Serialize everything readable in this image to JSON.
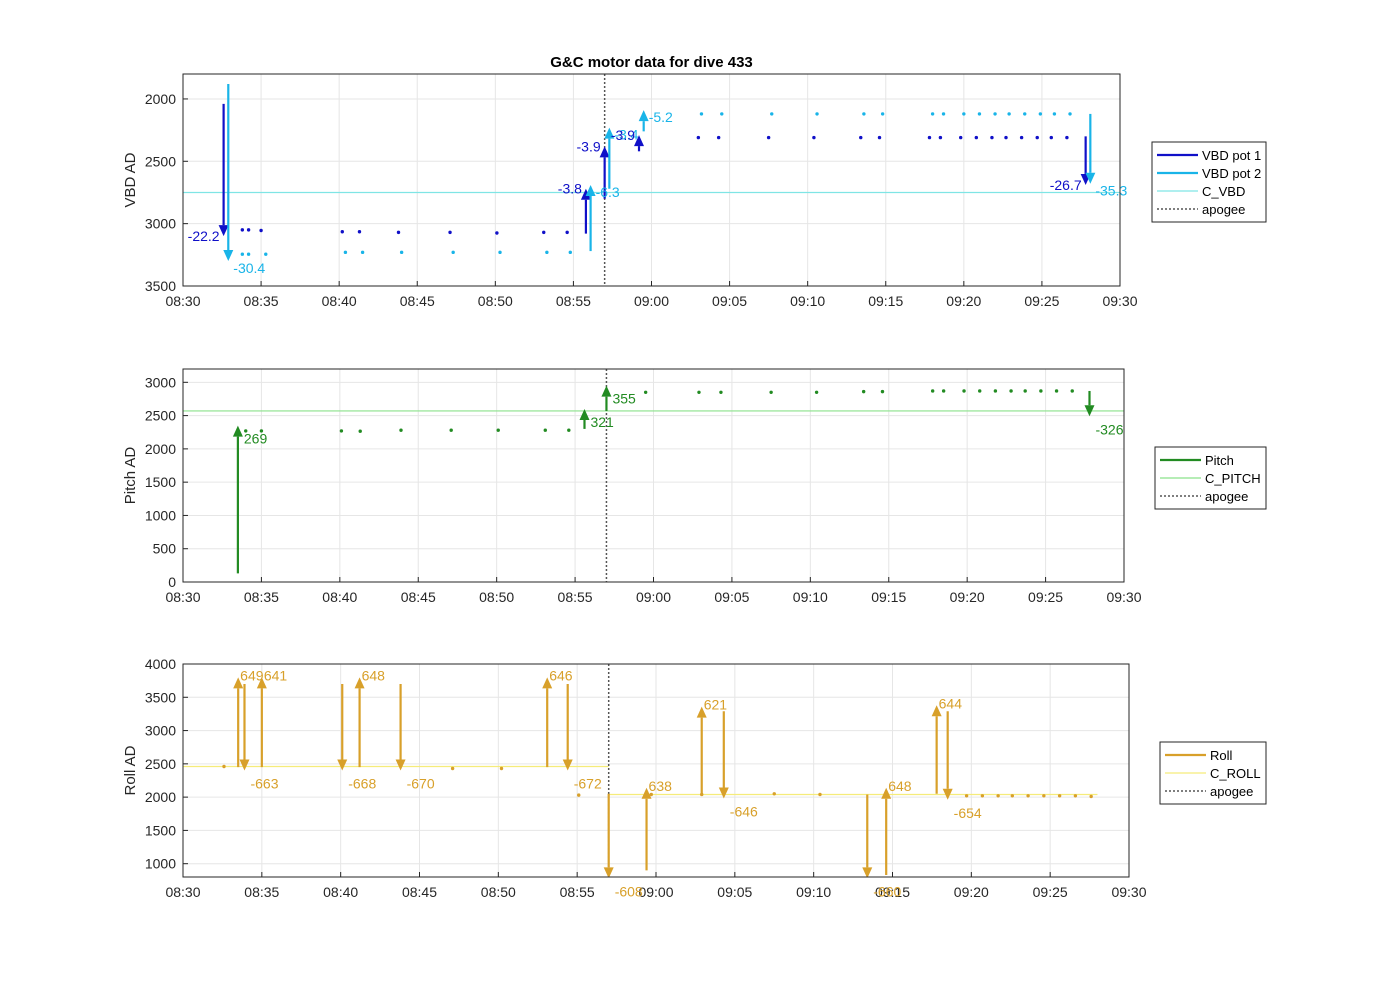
{
  "chart_data": [
    {
      "type": "line",
      "title": "G&C motor data for dive 433",
      "ylabel": "VBD AD",
      "ylim": [
        1800,
        3500
      ],
      "y_reversed": true,
      "yticks": [
        "2000",
        "2500",
        "3000",
        "3500"
      ],
      "yticks_values": [
        2000,
        2500,
        3000,
        3500
      ],
      "xlim": [
        "08:30",
        "09:30"
      ],
      "xticks": [
        "08:30",
        "08:35",
        "08:40",
        "08:45",
        "08:50",
        "08:55",
        "09:00",
        "09:05",
        "09:10",
        "09:15",
        "09:20",
        "09:25",
        "09:30"
      ],
      "grid": true,
      "legend_position": "right",
      "colors": {
        "pot1": "#1010c8",
        "pot2": "#19b4e8",
        "ref": "#7fe5e5",
        "apogee": "#555555"
      },
      "legend": [
        {
          "label": "VBD pot 1",
          "color": "#1010c8",
          "style": "thick"
        },
        {
          "label": "VBD pot 2",
          "color": "#19b4e8",
          "style": "thick"
        },
        {
          "label": "C_VBD",
          "color": "#7fe5e5",
          "style": "thin"
        },
        {
          "label": "apogee",
          "color": "#555555",
          "style": "dotted"
        }
      ],
      "reference_y": 2750,
      "apogee_x": 57,
      "dots": [
        {
          "name": "VBD pot 1",
          "color": "#1010c8",
          "points": [
            [
              33.8,
              3050
            ],
            [
              34.2,
              3050
            ],
            [
              35,
              3055
            ],
            [
              40.2,
              3065
            ],
            [
              41.3,
              3065
            ],
            [
              43.8,
              3070
            ],
            [
              47.1,
              3070
            ],
            [
              50.1,
              3075
            ],
            [
              53.1,
              3070
            ],
            [
              54.6,
              3070
            ],
            [
              63,
              2310
            ],
            [
              64.3,
              2310
            ],
            [
              67.5,
              2310
            ],
            [
              70.4,
              2310
            ],
            [
              73.4,
              2310
            ],
            [
              74.6,
              2310
            ],
            [
              77.8,
              2310
            ],
            [
              78.5,
              2310
            ],
            [
              79.8,
              2310
            ],
            [
              80.8,
              2310
            ],
            [
              81.8,
              2310
            ],
            [
              82.7,
              2310
            ],
            [
              83.7,
              2310
            ],
            [
              84.7,
              2310
            ],
            [
              85.6,
              2310
            ],
            [
              86.6,
              2310
            ]
          ]
        },
        {
          "name": "VBD pot 2",
          "color": "#19b4e8",
          "points": [
            [
              33.8,
              3245
            ],
            [
              34.2,
              3245
            ],
            [
              35.3,
              3245
            ],
            [
              40.4,
              3230
            ],
            [
              41.5,
              3230
            ],
            [
              44,
              3230
            ],
            [
              47.3,
              3230
            ],
            [
              50.3,
              3230
            ],
            [
              53.3,
              3230
            ],
            [
              54.8,
              3230
            ],
            [
              63.2,
              2120
            ],
            [
              64.5,
              2120
            ],
            [
              67.7,
              2120
            ],
            [
              70.6,
              2120
            ],
            [
              73.6,
              2120
            ],
            [
              74.8,
              2120
            ],
            [
              78,
              2120
            ],
            [
              78.7,
              2120
            ],
            [
              80,
              2120
            ],
            [
              81,
              2120
            ],
            [
              82,
              2120
            ],
            [
              82.9,
              2120
            ],
            [
              83.9,
              2120
            ],
            [
              84.9,
              2120
            ],
            [
              85.8,
              2120
            ],
            [
              86.8,
              2120
            ]
          ]
        }
      ],
      "arrows": [
        {
          "x": 32.6,
          "from": 2040,
          "to": 3100,
          "color": "#1010c8",
          "text": "-22.2",
          "text_side": "left"
        },
        {
          "x": 32.9,
          "from": 1880,
          "to": 3300,
          "color": "#19b4e8",
          "text": "-30.4",
          "text_side": "right"
        },
        {
          "x": 55.8,
          "from": 3080,
          "to": 2720,
          "color": "#1010c8",
          "text": "-3.8",
          "text_side": "left"
        },
        {
          "x": 56.1,
          "from": 3220,
          "to": 2690,
          "color": "#19b4e8",
          "text": "-6.3",
          "text_side": "right"
        },
        {
          "x": 57.0,
          "from": 2800,
          "to": 2380,
          "color": "#1010c8",
          "text": "-3.9",
          "text_side": "left"
        },
        {
          "x": 57.3,
          "from": 2720,
          "to": 2230,
          "color": "#19b4e8",
          "text": "-3.4",
          "text_side": "right"
        },
        {
          "x": 59.2,
          "from": 2420,
          "to": 2290,
          "color": "#1010c8",
          "text": "-3.9",
          "text_side": "left"
        },
        {
          "x": 59.5,
          "from": 2260,
          "to": 2090,
          "color": "#19b4e8",
          "text": "-5.2",
          "text_side": "right"
        },
        {
          "x": 87.8,
          "from": 2300,
          "to": 2690,
          "color": "#1010c8",
          "text": "-26.7",
          "text_side": "left"
        },
        {
          "x": 88.1,
          "from": 2120,
          "to": 2680,
          "color": "#19b4e8",
          "text": "-35.3",
          "text_side": "right"
        }
      ]
    },
    {
      "type": "line",
      "title": "",
      "ylabel": "Pitch AD",
      "ylim": [
        0,
        3200
      ],
      "y_reversed": false,
      "yticks": [
        "0",
        "500",
        "1000",
        "1500",
        "2000",
        "2500",
        "3000"
      ],
      "yticks_values": [
        0,
        500,
        1000,
        1500,
        2000,
        2500,
        3000
      ],
      "xlim": [
        "08:30",
        "09:30"
      ],
      "xticks": [
        "08:30",
        "08:35",
        "08:40",
        "08:45",
        "08:50",
        "08:55",
        "09:00",
        "09:05",
        "09:10",
        "09:15",
        "09:20",
        "09:25",
        "09:30"
      ],
      "grid": true,
      "legend_position": "right",
      "colors": {
        "pitch": "#228b22",
        "ref": "#8be28b",
        "apogee": "#555555"
      },
      "legend": [
        {
          "label": "Pitch",
          "color": "#228b22",
          "style": "thick"
        },
        {
          "label": "C_PITCH",
          "color": "#8be28b",
          "style": "thin"
        },
        {
          "label": "apogee",
          "color": "#555555",
          "style": "dotted"
        }
      ],
      "reference_y": 2570,
      "apogee_x": 57,
      "dots": [
        {
          "name": "Pitch",
          "color": "#228b22",
          "points": [
            [
              34,
              2270
            ],
            [
              35,
              2270
            ],
            [
              40.1,
              2270
            ],
            [
              41.3,
              2265
            ],
            [
              43.9,
              2280
            ],
            [
              47.1,
              2280
            ],
            [
              50.1,
              2280
            ],
            [
              53.1,
              2280
            ],
            [
              54.6,
              2280
            ],
            [
              59.5,
              2850
            ],
            [
              62.9,
              2850
            ],
            [
              64.3,
              2850
            ],
            [
              67.5,
              2850
            ],
            [
              70.4,
              2850
            ],
            [
              73.4,
              2860
            ],
            [
              74.6,
              2860
            ],
            [
              77.8,
              2870
            ],
            [
              78.5,
              2870
            ],
            [
              79.8,
              2870
            ],
            [
              80.8,
              2870
            ],
            [
              81.8,
              2870
            ],
            [
              82.8,
              2870
            ],
            [
              83.7,
              2870
            ],
            [
              84.7,
              2870
            ],
            [
              85.7,
              2870
            ],
            [
              86.7,
              2870
            ]
          ]
        }
      ],
      "arrows": [
        {
          "x": 33.5,
          "from": 130,
          "to": 2350,
          "color": "#228b22",
          "text": "269",
          "text_side": "right-below"
        },
        {
          "x": 55.6,
          "from": 2300,
          "to": 2600,
          "color": "#228b22",
          "text": "321",
          "text_side": "right-below"
        },
        {
          "x": 57.0,
          "from": 2570,
          "to": 2950,
          "color": "#228b22",
          "text": "355",
          "text_side": "right-below"
        },
        {
          "x": 87.8,
          "from": 2870,
          "to": 2490,
          "color": "#228b22",
          "text": "-326",
          "text_side": "right-below"
        }
      ]
    },
    {
      "type": "line",
      "title": "",
      "ylabel": "Roll AD",
      "ylim": [
        800,
        4000
      ],
      "y_reversed": false,
      "yticks": [
        "1000",
        "1500",
        "2000",
        "2500",
        "3000",
        "3500",
        "4000"
      ],
      "yticks_values": [
        1000,
        1500,
        2000,
        2500,
        3000,
        3500,
        4000
      ],
      "xlim": [
        "08:30",
        "09:30"
      ],
      "xticks": [
        "08:30",
        "08:35",
        "08:40",
        "08:45",
        "08:50",
        "08:55",
        "09:00",
        "09:05",
        "09:10",
        "09:15",
        "09:20",
        "09:25",
        "09:30"
      ],
      "grid": true,
      "legend_position": "right",
      "colors": {
        "roll": "#d8a02a",
        "ref": "#f5ec7a",
        "apogee": "#555555"
      },
      "legend": [
        {
          "label": "Roll",
          "color": "#d8a02a",
          "style": "thick"
        },
        {
          "label": "C_ROLL",
          "color": "#f5ec7a",
          "style": "thin"
        },
        {
          "label": "apogee",
          "color": "#555555",
          "style": "dotted"
        }
      ],
      "reference_segments": [
        [
          30,
          57,
          2460
        ],
        [
          57,
          88,
          2040
        ]
      ],
      "apogee_x": 57,
      "dots": [
        {
          "name": "Roll",
          "color": "#d8a02a",
          "points": [
            [
              32.6,
              2460
            ],
            [
              47.1,
              2430
            ],
            [
              50.2,
              2430
            ],
            [
              55.1,
              2030
            ],
            [
              59.7,
              2040
            ],
            [
              62.9,
              2040
            ],
            [
              67.5,
              2050
            ],
            [
              70.4,
              2040
            ],
            [
              79.7,
              2020
            ],
            [
              80.7,
              2020
            ],
            [
              81.7,
              2020
            ],
            [
              82.6,
              2020
            ],
            [
              83.6,
              2020
            ],
            [
              84.6,
              2020
            ],
            [
              85.6,
              2020
            ],
            [
              86.6,
              2020
            ],
            [
              87.6,
              2010
            ]
          ]
        }
      ],
      "arrows": [
        {
          "x": 33.5,
          "from": 2450,
          "to": 3800,
          "color": "#d8a02a",
          "text": "649",
          "text_side": "right-top"
        },
        {
          "x": 33.9,
          "from": 3700,
          "to": 2400,
          "color": "#d8a02a",
          "text": "-663",
          "text_side": "right-below"
        },
        {
          "x": 35.0,
          "from": 2450,
          "to": 3800,
          "color": "#d8a02a",
          "text": "641",
          "text_side": "right-top"
        },
        {
          "x": 40.1,
          "from": 3700,
          "to": 2400,
          "color": "#d8a02a",
          "text": "-668",
          "text_side": "right-below"
        },
        {
          "x": 41.2,
          "from": 2450,
          "to": 3800,
          "color": "#d8a02a",
          "text": "648",
          "text_side": "right-top"
        },
        {
          "x": 43.8,
          "from": 3700,
          "to": 2400,
          "color": "#d8a02a",
          "text": "-670",
          "text_side": "right-below"
        },
        {
          "x": 53.1,
          "from": 2450,
          "to": 3800,
          "color": "#d8a02a",
          "text": "646",
          "text_side": "right-top"
        },
        {
          "x": 54.4,
          "from": 3700,
          "to": 2400,
          "color": "#d8a02a",
          "text": "-672",
          "text_side": "right-below"
        },
        {
          "x": 57.0,
          "from": 2050,
          "to": 780,
          "color": "#d8a02a",
          "text": "-608",
          "text_side": "right-below"
        },
        {
          "x": 59.4,
          "from": 900,
          "to": 2140,
          "color": "#d8a02a",
          "text": "638",
          "text_side": "right-top"
        },
        {
          "x": 62.9,
          "from": 2050,
          "to": 3360,
          "color": "#d8a02a",
          "text": "621",
          "text_side": "right-top"
        },
        {
          "x": 64.3,
          "from": 3290,
          "to": 1980,
          "color": "#d8a02a",
          "text": "-646",
          "text_side": "right-below"
        },
        {
          "x": 73.4,
          "from": 2040,
          "to": 780,
          "color": "#d8a02a",
          "text": "-660",
          "text_side": "right-below"
        },
        {
          "x": 74.6,
          "from": 830,
          "to": 2140,
          "color": "#d8a02a",
          "text": "648",
          "text_side": "right-top"
        },
        {
          "x": 77.8,
          "from": 2050,
          "to": 3380,
          "color": "#d8a02a",
          "text": "644",
          "text_side": "right-top"
        },
        {
          "x": 78.5,
          "from": 3290,
          "to": 1960,
          "color": "#d8a02a",
          "text": "-654",
          "text_side": "right-below"
        }
      ]
    }
  ]
}
